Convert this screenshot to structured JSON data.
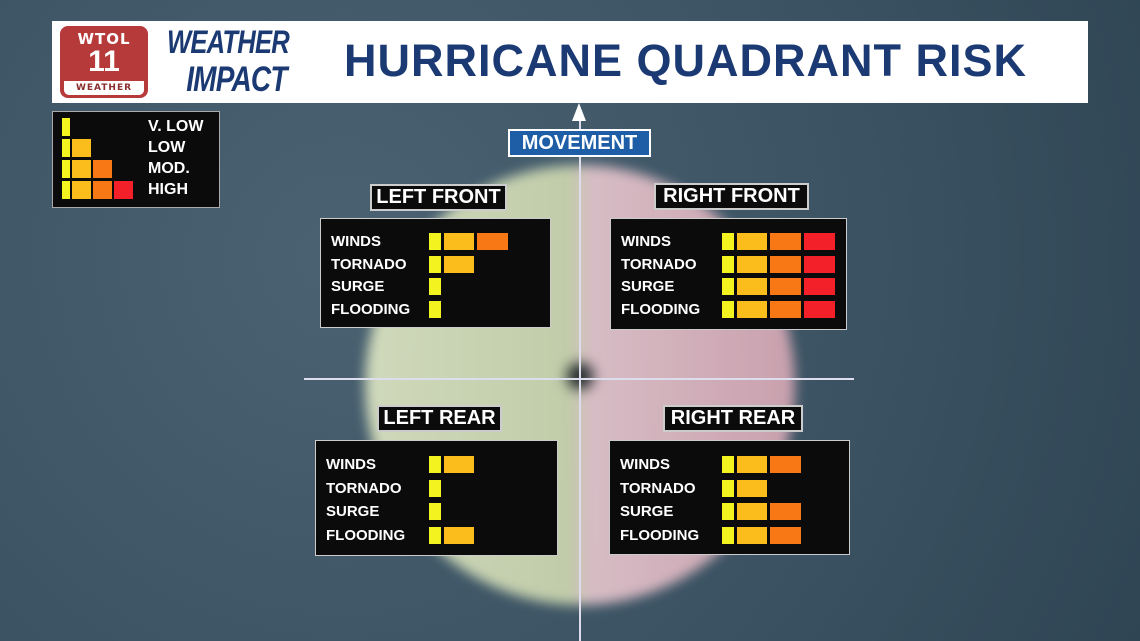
{
  "header": {
    "station_top": "WTOL",
    "station_num": "11",
    "station_bottom": "WEATHER",
    "brand_line1": "WEATHER",
    "brand_line2": "IMPACT",
    "title": "HURRICANE QUADRANT RISK"
  },
  "legend": {
    "levels": [
      "V. LOW",
      "LOW",
      "MOD.",
      "HIGH"
    ]
  },
  "colors": {
    "level1": "#f3f31f",
    "level2": "#fbbd1c",
    "level3": "#f97816",
    "level4": "#f3202a"
  },
  "movement_label": "MOVEMENT",
  "row_labels": [
    "WINDS",
    "TORNADO",
    "SURGE",
    "FLOODING"
  ],
  "quadrants": [
    {
      "title": "LEFT FRONT",
      "levels": [
        3,
        2,
        1,
        1
      ]
    },
    {
      "title": "RIGHT FRONT",
      "levels": [
        4,
        4,
        4,
        4
      ]
    },
    {
      "title": "LEFT REAR",
      "levels": [
        2,
        1,
        1,
        2
      ]
    },
    {
      "title": "RIGHT REAR",
      "levels": [
        3,
        2,
        3,
        3
      ]
    }
  ]
}
